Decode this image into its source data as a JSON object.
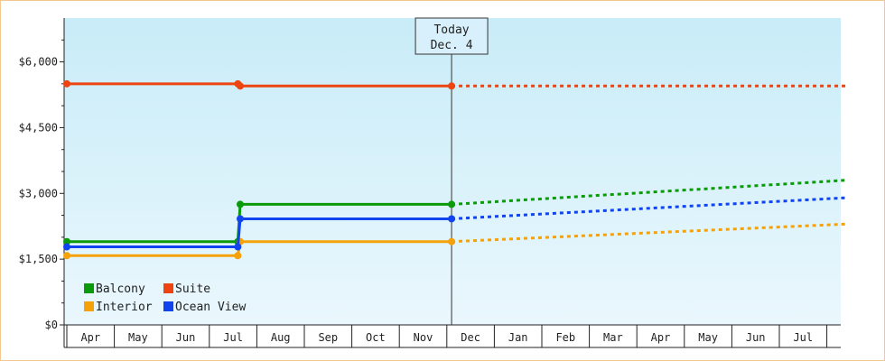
{
  "chart_data": {
    "type": "line",
    "y_axis": {
      "min": 0,
      "max": 7000,
      "ticks": [
        0,
        1500,
        3000,
        4500,
        6000
      ],
      "tick_labels": [
        "$0",
        "$1,500",
        "$3,000",
        "$4,500",
        "$6,000"
      ]
    },
    "months": [
      "Apr",
      "May",
      "Jun",
      "Jul",
      "Aug",
      "Sep",
      "Oct",
      "Nov",
      "Dec",
      "Jan",
      "Feb",
      "Mar",
      "Apr",
      "May",
      "Jun",
      "Jul"
    ],
    "today": {
      "label": "Today",
      "date": "Dec. 4",
      "month_position": 8.1
    },
    "series": [
      {
        "name": "Balcony",
        "color": "#0a9a0a",
        "actual": [
          [
            0.0,
            1900
          ],
          [
            3.6,
            1900
          ],
          [
            3.65,
            2750
          ],
          [
            8.1,
            2750
          ]
        ],
        "projected": [
          [
            8.1,
            2750
          ],
          [
            16.4,
            3300
          ]
        ]
      },
      {
        "name": "Suite",
        "color": "#ee4411",
        "actual": [
          [
            0.0,
            5500
          ],
          [
            3.6,
            5500
          ],
          [
            3.65,
            5450
          ],
          [
            8.1,
            5450
          ]
        ],
        "projected": [
          [
            8.1,
            5450
          ],
          [
            16.4,
            5450
          ]
        ]
      },
      {
        "name": "Interior",
        "color": "#f5a20a",
        "actual": [
          [
            0.0,
            1580
          ],
          [
            3.6,
            1580
          ],
          [
            3.65,
            1900
          ],
          [
            8.1,
            1900
          ]
        ],
        "projected": [
          [
            8.1,
            1900
          ],
          [
            16.4,
            2300
          ]
        ]
      },
      {
        "name": "Ocean View",
        "color": "#1144ee",
        "actual": [
          [
            0.0,
            1780
          ],
          [
            3.6,
            1780
          ],
          [
            3.65,
            2420
          ],
          [
            8.1,
            2420
          ]
        ],
        "projected": [
          [
            8.1,
            2420
          ],
          [
            16.4,
            2900
          ]
        ]
      }
    ],
    "legend": {
      "placement": "bottom-left"
    },
    "grid": false
  }
}
